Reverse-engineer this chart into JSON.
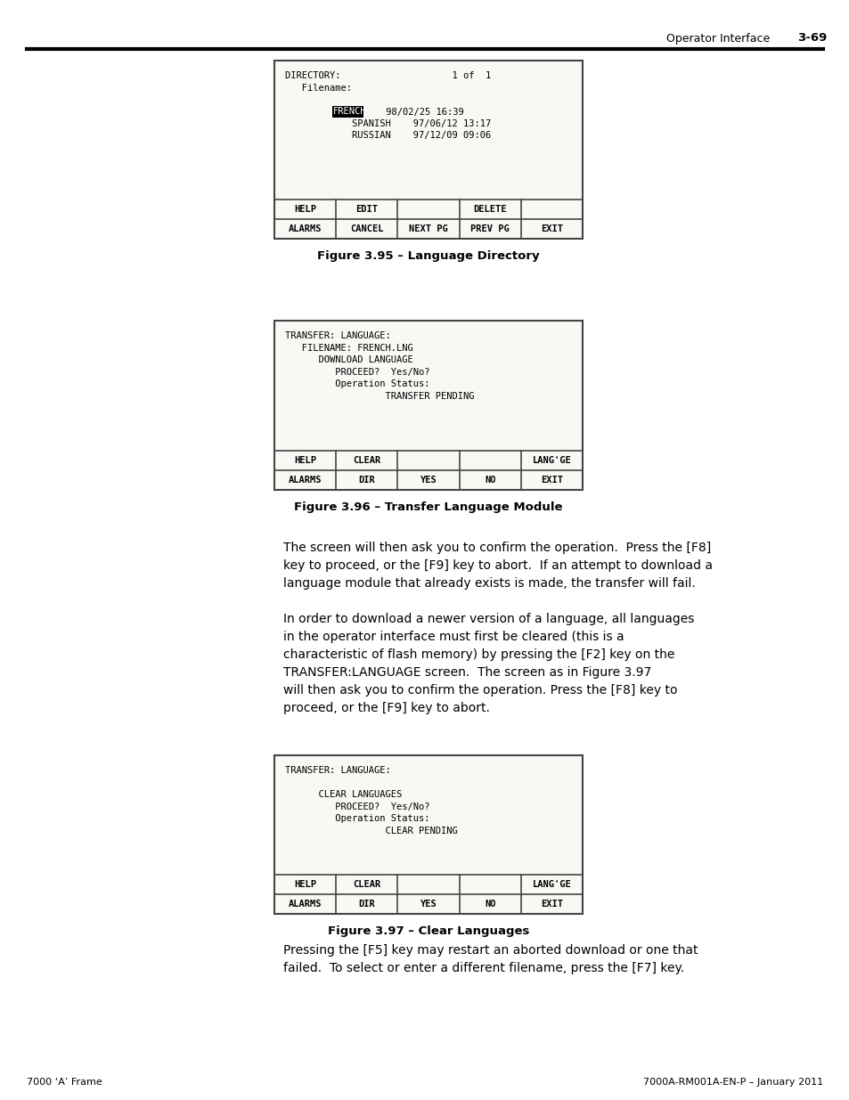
{
  "page_bg": "#ffffff",
  "header_text": "Operator Interface",
  "header_page": "3-69",
  "footer_left": "7000 ‘A’ Frame",
  "footer_right": "7000A-RM001A-EN-P – January 2011",
  "fig1_title": "Figure 3.95 – Language Directory",
  "fig1_content": [
    "DIRECTORY:                    1 of  1",
    "   Filename:",
    "",
    "            FRENCH     98/02/25 16:39",
    "            SPANISH    97/06/12 13:17",
    "            RUSSIAN    97/12/09 09:06",
    "",
    ""
  ],
  "fig1_highlight_row": 3,
  "fig1_highlight_text": "FRENCH",
  "fig1_buttons_row1": [
    "HELP",
    "EDIT",
    "",
    "DELETE",
    ""
  ],
  "fig1_buttons_row2": [
    "ALARMS",
    "CANCEL",
    "NEXT PG",
    "PREV PG",
    "EXIT"
  ],
  "fig2_title": "Figure 3.96 – Transfer Language Module",
  "fig2_content": [
    "TRANSFER: LANGUAGE:",
    "   FILENAME: FRENCH.LNG",
    "      DOWNLOAD LANGUAGE",
    "         PROCEED?  Yes/No?",
    "         Operation Status:",
    "                  TRANSFER PENDING",
    "",
    ""
  ],
  "fig2_buttons_row1": [
    "HELP",
    "CLEAR",
    "",
    "",
    "LANG'GE"
  ],
  "fig2_buttons_row2": [
    "ALARMS",
    "DIR",
    "YES",
    "NO",
    "EXIT"
  ],
  "body_text1": "The screen will then ask you to confirm the operation.  Press the [F8]\nkey to proceed, or the [F9] key to abort.  If an attempt to download a\nlanguage module that already exists is made, the transfer will fail.",
  "body_text2": "In order to download a newer version of a language, all languages\nin the operator interface must first be cleared (this is a\ncharacteristic of flash memory) by pressing the [F2] key on the\nTRANSFER:LANGUAGE screen.  The screen as in Figure 3.97\nwill then ask you to confirm the operation. Press the [F8] key to\nproceed, or the [F9] key to abort.",
  "fig3_title": "Figure 3.97 – Clear Languages",
  "fig3_content": [
    "TRANSFER: LANGUAGE:",
    "",
    "      CLEAR LANGUAGES",
    "         PROCEED?  Yes/No?",
    "         Operation Status:",
    "                  CLEAR PENDING",
    "",
    ""
  ],
  "fig3_buttons_row1": [
    "HELP",
    "CLEAR",
    "",
    "",
    "LANG'GE"
  ],
  "fig3_buttons_row2": [
    "ALARMS",
    "DIR",
    "YES",
    "NO",
    "EXIT"
  ],
  "body_text3": "Pressing the [F5] key may restart an aborted download or one that\nfailed.  To select or enter a different filename, press the [F7] key.",
  "body_font": "DejaVu Sans",
  "mono_font": "monospace"
}
